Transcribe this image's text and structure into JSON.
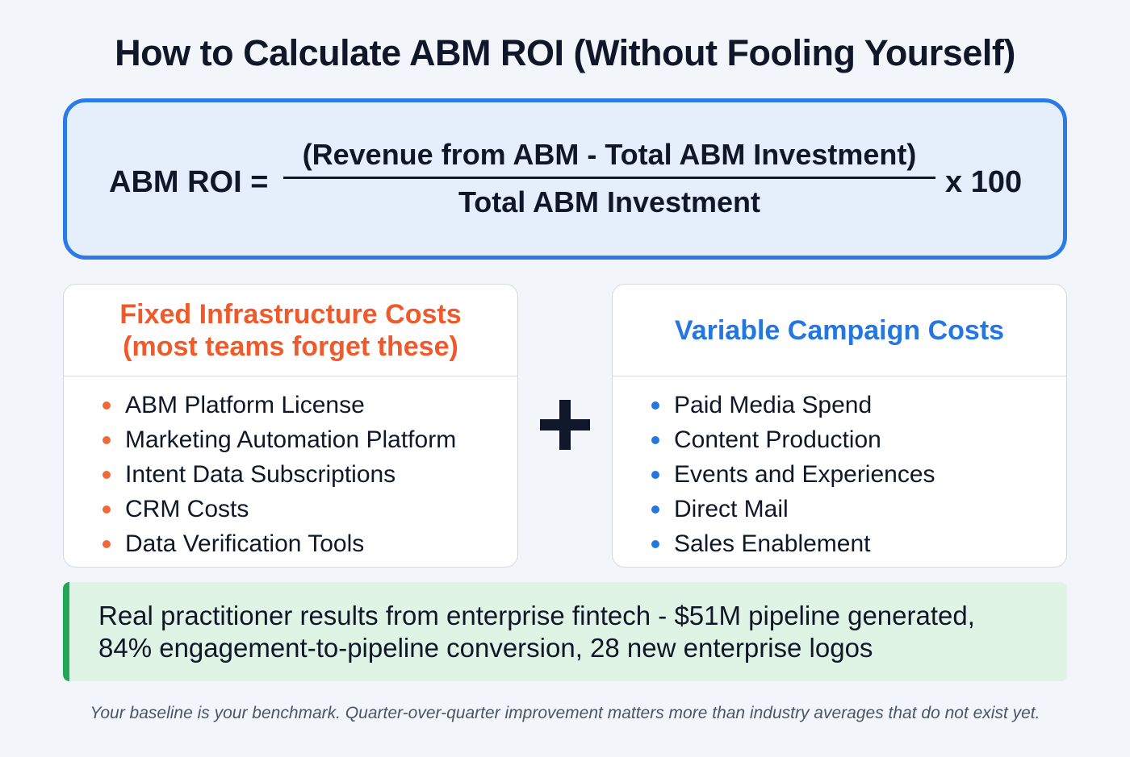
{
  "title": "How to Calculate ABM ROI (Without Fooling Yourself)",
  "formula": {
    "lhs": "ABM ROI =",
    "numerator": "(Revenue from ABM - Total ABM Investment)",
    "denominator": "Total ABM Investment",
    "multiplier": "x 100",
    "border_color": "#2b7be6"
  },
  "fixed_costs": {
    "title_line1": "Fixed Infrastructure Costs",
    "title_line2": "(most teams forget these)",
    "color": "#ee5a2b",
    "items": [
      "ABM Platform License",
      "Marketing Automation Platform",
      "Intent Data Subscriptions",
      "CRM Costs",
      "Data Verification Tools"
    ]
  },
  "operator_icon": "plus-icon",
  "variable_costs": {
    "title": "Variable Campaign Costs",
    "color": "#2476e0",
    "items": [
      "Paid Media Spend",
      "Content Production",
      "Events and Experiences",
      "Direct Mail",
      "Sales Enablement"
    ]
  },
  "result": {
    "line1": "Real practitioner results from enterprise fintech - $51M pipeline generated,",
    "line2": "84% engagement-to-pipeline conversion, 28 new enterprise logos",
    "accent_color": "#22a855"
  },
  "footer": "Your baseline is your benchmark. Quarter-over-quarter improvement matters more than industry averages that do not exist yet."
}
